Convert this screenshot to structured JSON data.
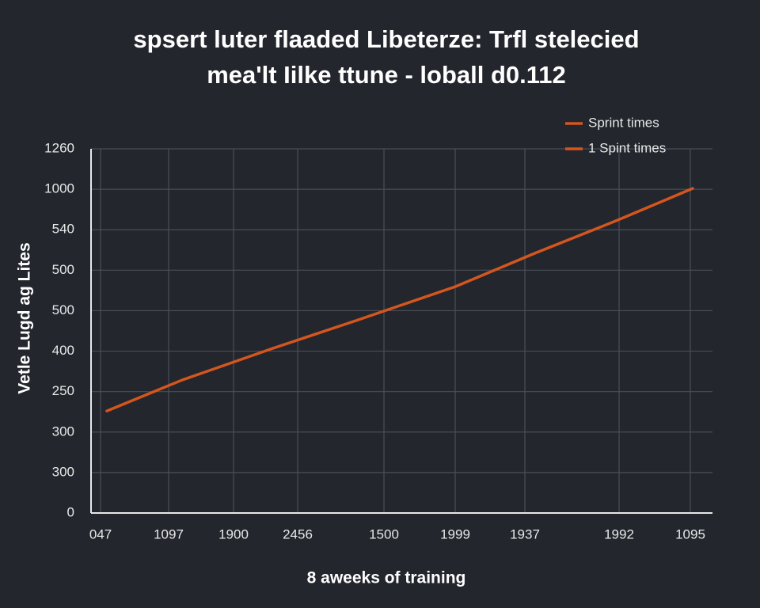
{
  "chart_data": {
    "type": "line",
    "title": [
      "spsert luter flaaded Libeterze: Trfl stelecied",
      "mea'lt Iilke  ttune - loball d0.112"
    ],
    "xlabel": "8 aweeks of training",
    "ylabel": "Vetle Lugd ag Lites",
    "x": [
      20,
      115,
      230,
      335,
      460,
      560,
      665,
      760
    ],
    "series": [
      {
        "name": "Sprint times",
        "color": "#d4561f",
        "values": [
          353,
          460,
          570,
          666,
          783,
          898,
          1013,
          1123
        ]
      }
    ],
    "legend": [
      {
        "name": "Sprint times",
        "color": "#d4561f"
      },
      {
        "name": "1 Spint times",
        "color": "#d4561f"
      }
    ],
    "legend_position": "upper right",
    "xlim": [
      0,
      785
    ],
    "ylim": [
      0,
      1260
    ],
    "xticks": [
      {
        "value": 12,
        "label": "047"
      },
      {
        "value": 98,
        "label": "1097"
      },
      {
        "value": 180,
        "label": "1900"
      },
      {
        "value": 261,
        "label": "2456"
      },
      {
        "value": 370,
        "label": "1500"
      },
      {
        "value": 460,
        "label": "1999"
      },
      {
        "value": 548,
        "label": "1937"
      },
      {
        "value": 667,
        "label": "1992"
      },
      {
        "value": 757,
        "label": "1095"
      }
    ],
    "yticks": [
      0,
      {
        "value": 140,
        "label": "300"
      },
      {
        "value": 280,
        "label": "300"
      },
      {
        "value": 420,
        "label": "250"
      },
      {
        "value": 560,
        "label": "400"
      },
      {
        "value": 700,
        "label": "500"
      },
      {
        "value": 840,
        "label": "500"
      },
      {
        "value": 980,
        "label": "540"
      },
      {
        "value": 1120,
        "label": "1000"
      },
      1260
    ],
    "grid": true
  }
}
